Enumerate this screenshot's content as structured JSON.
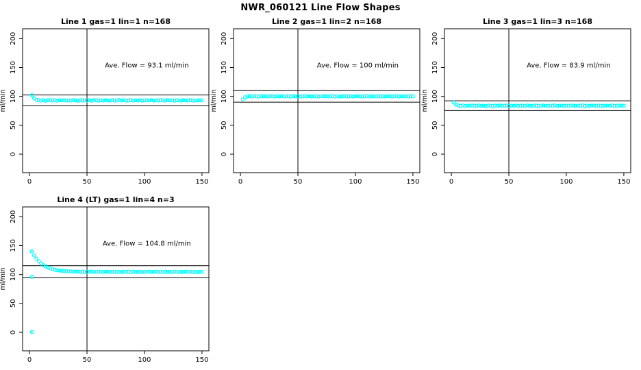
{
  "page": {
    "title": "NWR_060121  Line Flow Shapes"
  },
  "colors": {
    "marker": "#00ffff",
    "axis": "#000000",
    "text": "#000000",
    "background": "#ffffff"
  },
  "chart_data": [
    {
      "type": "scatter",
      "title": "Line 1 gas=1 lin=1 n=168",
      "annotation": "Ave. Flow =  93.1  ml/min",
      "ave_flow": 93.1,
      "n": 168,
      "ylabel": "ml/min",
      "xticks": [
        0,
        50,
        100,
        150
      ],
      "yticks": [
        0,
        50,
        100,
        150,
        200
      ],
      "xlim": [
        -6,
        156
      ],
      "ylim": [
        -32,
        217
      ],
      "vline_x": 50,
      "hlines": [
        102.4,
        83.8
      ],
      "annotation_xy": [
        102,
        150
      ],
      "series": {
        "x0": 2,
        "dx": 2,
        "y": [
          102,
          96.5,
          94,
          93.6,
          92.7,
          93.3,
          92.4,
          93.7,
          93.1,
          92.8,
          93.5,
          92.5,
          93.4,
          93.0,
          93.6,
          92.7,
          93.2,
          92.6,
          93.7,
          93.0,
          92.5,
          93.4,
          92.8,
          93.6,
          92.9,
          93.3,
          92.5,
          93.7,
          93.1,
          92.7,
          93.4,
          92.6,
          93.5,
          93.0,
          92.8,
          93.6,
          92.5,
          93.2,
          93.7,
          92.9,
          93.4,
          92.6,
          93.1,
          93.5,
          92.7,
          93.3,
          92.8,
          93.6,
          92.5,
          93.0,
          93.4,
          92.9,
          93.7,
          92.6,
          93.2,
          92.8,
          93.5,
          93.1,
          92.7,
          93.6,
          92.9,
          93.3,
          92.5,
          93.4,
          93.0,
          92.7,
          93.5,
          92.8,
          93.2,
          93.6,
          92.6,
          93.1,
          92.9,
          93.4,
          93.0
        ]
      },
      "outliers": []
    },
    {
      "type": "scatter",
      "title": "Line 2 gas=1 lin=2 n=168",
      "annotation": "Ave. Flow =  100  ml/min",
      "ave_flow": 100,
      "n": 168,
      "ylabel": "ml/min",
      "xticks": [
        0,
        50,
        100,
        150
      ],
      "yticks": [
        0,
        50,
        100,
        150,
        200
      ],
      "xlim": [
        -6,
        156
      ],
      "ylim": [
        -32,
        217
      ],
      "vline_x": 50,
      "hlines": [
        110,
        90
      ],
      "annotation_xy": [
        102,
        150
      ],
      "series": {
        "x0": 2,
        "dx": 2,
        "y": [
          95,
          98.5,
          100.0,
          100.4,
          99.8,
          100.6,
          100.1,
          99.7,
          100.5,
          100.0,
          100.3,
          99.8,
          100.6,
          100.2,
          99.7,
          100.4,
          100.0,
          100.5,
          99.8,
          100.3,
          100.1,
          99.7,
          100.6,
          100.0,
          100.4,
          99.8,
          100.2,
          100.5,
          99.9,
          100.3,
          99.7,
          100.6,
          100.1,
          99.8,
          100.4,
          100.0,
          100.5,
          99.9,
          100.2,
          100.6,
          99.7,
          100.3,
          100.0,
          99.8,
          100.5,
          100.1,
          99.9,
          100.4,
          99.7,
          100.2,
          100.6,
          100.0,
          99.8,
          100.3,
          100.5,
          99.9,
          100.1,
          100.4,
          99.7,
          100.6,
          100.0,
          100.2,
          99.8,
          100.5,
          100.1,
          99.9,
          100.3,
          100.6,
          99.7,
          100.4,
          100.0,
          100.2,
          99.8,
          100.5,
          100.1
        ]
      },
      "outliers": []
    },
    {
      "type": "scatter",
      "title": "Line 3 gas=1 lin=3 n=168",
      "annotation": "Ave. Flow =  83.9  ml/min",
      "ave_flow": 83.9,
      "n": 168,
      "ylabel": "ml/min",
      "xticks": [
        0,
        50,
        100,
        150
      ],
      "yticks": [
        0,
        50,
        100,
        150,
        200
      ],
      "xlim": [
        -6,
        156
      ],
      "ylim": [
        -32,
        217
      ],
      "vline_x": 50,
      "hlines": [
        92.3,
        75.5
      ],
      "annotation_xy": [
        102,
        150
      ],
      "series": {
        "x0": 2,
        "dx": 2,
        "y": [
          89.5,
          85.5,
          84.2,
          83.6,
          84.3,
          83.5,
          84.0,
          83.7,
          84.4,
          83.5,
          83.9,
          84.2,
          83.6,
          84.0,
          83.4,
          84.3,
          83.8,
          83.5,
          84.1,
          83.7,
          84.4,
          83.6,
          83.9,
          84.2,
          83.5,
          84.0,
          83.7,
          84.3,
          83.6,
          83.9,
          84.1,
          83.5,
          84.4,
          83.8,
          83.6,
          84.2,
          83.9,
          83.5,
          84.0,
          84.3,
          83.7,
          83.6,
          84.1,
          83.9,
          84.4,
          83.5,
          83.8,
          84.2,
          83.6,
          84.0,
          83.7,
          84.3,
          83.9,
          83.5,
          84.1,
          83.8,
          84.4,
          83.6,
          84.0,
          83.7,
          84.2,
          83.9,
          83.5,
          84.3,
          83.8,
          83.6,
          84.1,
          84.0,
          83.7,
          84.4,
          83.5,
          83.9,
          84.2,
          83.8,
          84.0
        ]
      },
      "outliers": []
    },
    {
      "type": "scatter",
      "title": "Line 4 (LT) gas=1 lin=4 n=3",
      "annotation": "Ave. Flow =  104.8  ml/min",
      "ave_flow": 104.8,
      "n": 3,
      "ylabel": "ml/min",
      "xticks": [
        0,
        50,
        100,
        150
      ],
      "yticks": [
        0,
        50,
        100,
        150,
        200
      ],
      "xlim": [
        -6,
        156
      ],
      "ylim": [
        -32,
        217
      ],
      "vline_x": 50,
      "hlines": [
        115.3,
        94.3
      ],
      "annotation_xy": [
        102,
        150
      ],
      "series": {
        "x0": 2,
        "dx": 2,
        "y": [
          140,
          133,
          127.5,
          122.7,
          119,
          116.2,
          113.9,
          112,
          110.5,
          109.2,
          108.2,
          107.5,
          106.9,
          106.4,
          106,
          105.7,
          105.5,
          105.3,
          105.2,
          105,
          105.3,
          104.4,
          105.1,
          104.2,
          105,
          104.6,
          105.3,
          104.3,
          104.9,
          104.5,
          105.2,
          104.3,
          104.8,
          105.1,
          104.4,
          104.9,
          104.2,
          105,
          104.6,
          104.3,
          105.2,
          104.5,
          104.8,
          104.2,
          105.1,
          104.6,
          104.4,
          105,
          104.3,
          104.8,
          104.5,
          105.2,
          104.3,
          104.7,
          105,
          104.4,
          104.8,
          104.2,
          105.1,
          104.5,
          104.9,
          104.3,
          105,
          104.6,
          104.2,
          104.8,
          104.4,
          105.1,
          104.5,
          104.9,
          104.3,
          104.7,
          104.2,
          104.8,
          104.5
        ]
      },
      "outliers": [
        [
          2,
          96
        ],
        [
          2,
          0.5
        ]
      ]
    }
  ]
}
